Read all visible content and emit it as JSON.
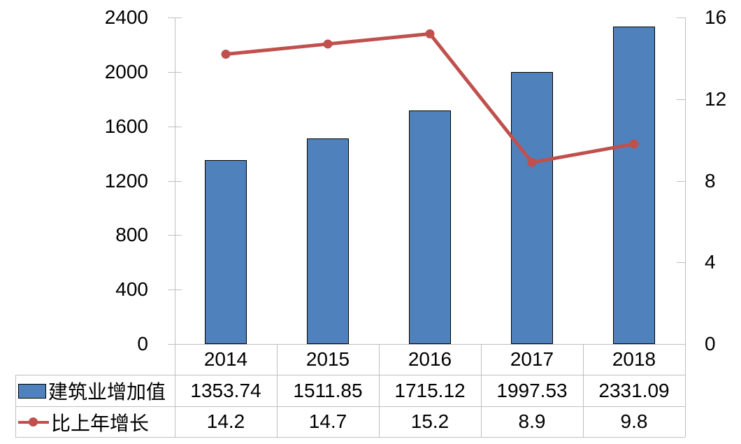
{
  "chart_data": {
    "type": "bar",
    "subtype": "combo-bar-line-dual-axis",
    "title": "",
    "categories": [
      "2014",
      "2015",
      "2016",
      "2017",
      "2018"
    ],
    "series": [
      {
        "name": "建筑业增加值",
        "chart_type": "bar",
        "y_axis": "left",
        "color": "#4f81bd",
        "border_color": "#000000",
        "values": [
          1353.74,
          1511.85,
          1715.12,
          1997.53,
          2331.09
        ]
      },
      {
        "name": "比上年增长",
        "chart_type": "line",
        "y_axis": "right",
        "color": "#c0504d",
        "marker": "circle",
        "values": [
          14.2,
          14.7,
          15.2,
          8.9,
          9.8
        ]
      }
    ],
    "left_axis": {
      "min": 0,
      "max": 2400,
      "step": 400,
      "ticks": [
        0,
        400,
        800,
        1200,
        1600,
        2000,
        2400
      ]
    },
    "right_axis": {
      "min": 0,
      "max": 16,
      "step": 4,
      "ticks": [
        0,
        4,
        8,
        12,
        16
      ]
    },
    "grid": false,
    "data_table": true,
    "legend_position": "data-table-keys",
    "colors": {
      "axis_line": "#bfbfbf",
      "text": "#000000",
      "background": "#ffffff"
    }
  }
}
